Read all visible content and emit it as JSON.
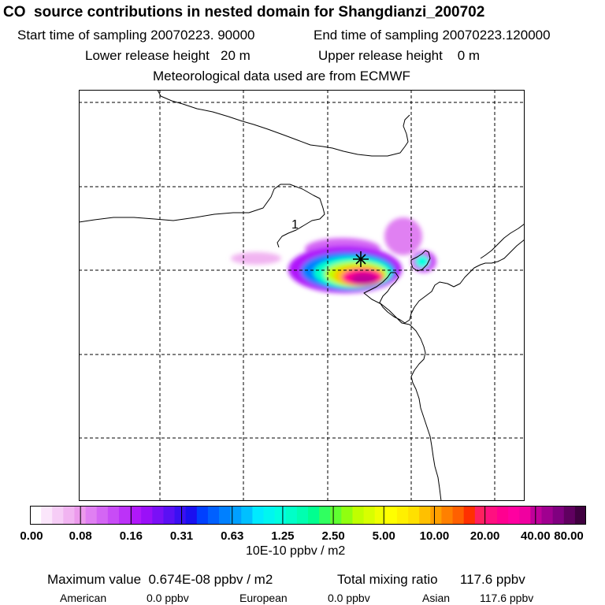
{
  "header": {
    "title": "CO  source contributions in nested domain for Shangdianzi_200702",
    "start_time": "Start time of sampling 20070223. 90000",
    "end_time": "End time of sampling 20070223.120000",
    "lower_height": "Lower release height   20 m",
    "upper_height": "Upper release height    0 m",
    "met_data": "Meteorological data used are from ECMWF"
  },
  "map": {
    "region_label": "1",
    "receptor_marker": "Shangdianzi"
  },
  "colorbar": {
    "unit": "10E-10 ppbv / m2",
    "ticks": [
      "0.00",
      "0.08",
      "0.16",
      "0.31",
      "0.63",
      "1.25",
      "2.50",
      "5.00",
      "10.00",
      "20.00",
      "40.00",
      "80.00"
    ],
    "colors": [
      "#ffffff",
      "#fbe6fb",
      "#f6cdf6",
      "#f1b4f1",
      "#ec9aec",
      "#e080f2",
      "#d466f4",
      "#c84cf6",
      "#bc32f8",
      "#b018fa",
      "#9a10f8",
      "#7a10f6",
      "#5a10f4",
      "#3a10f2",
      "#1a10f0",
      "#0040ff",
      "#0060ff",
      "#0080ff",
      "#00a0ff",
      "#00c0ff",
      "#00eaff",
      "#00f6f0",
      "#00ffe0",
      "#00ffc8",
      "#00ffb0",
      "#00ff90",
      "#30ff60",
      "#60ff30",
      "#90ff10",
      "#c0ff00",
      "#d8ff00",
      "#f0ff00",
      "#ffff00",
      "#fff000",
      "#ffe000",
      "#ffc000",
      "#ffa000",
      "#ff8000",
      "#ff6000",
      "#ff3000",
      "#ff2060",
      "#ff1080",
      "#ff0090",
      "#ff00a0",
      "#f000a0",
      "#c0009a",
      "#a00090",
      "#800080",
      "#600060",
      "#400040"
    ]
  },
  "stats": {
    "max_value": "Maximum value  0.674E-08 ppbv / m2",
    "total_mixing": "Total mixing ratio      117.6 ppbv",
    "american_label": "American",
    "american_value": "0.0 ppbv",
    "european_label": "European",
    "european_value": "0.0 ppbv",
    "asian_label": "Asian",
    "asian_value": "117.6 ppbv"
  }
}
